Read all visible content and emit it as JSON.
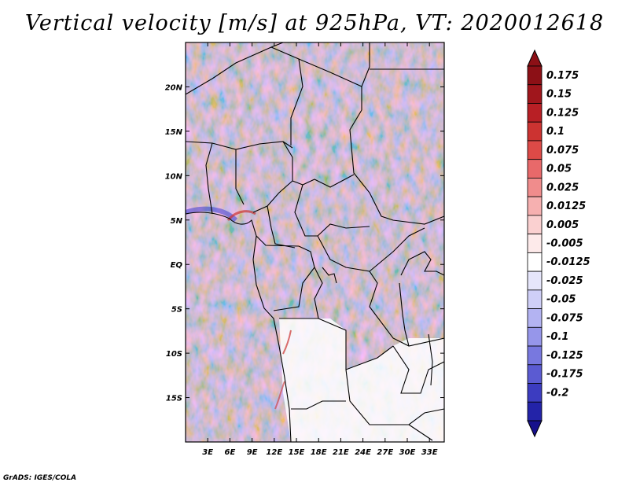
{
  "title": "Vertical velocity [m/s] at 925hPa, VT: 2020012618",
  "footer": "GrADS: IGES/COLA",
  "map": {
    "lat_ticks": [
      {
        "value": 20,
        "label": "20N"
      },
      {
        "value": 15,
        "label": "15N"
      },
      {
        "value": 10,
        "label": "10N"
      },
      {
        "value": 5,
        "label": "5N"
      },
      {
        "value": 0,
        "label": "EQ"
      },
      {
        "value": -5,
        "label": "5S"
      },
      {
        "value": -10,
        "label": "10S"
      },
      {
        "value": -15,
        "label": "15S"
      }
    ],
    "lon_ticks": [
      {
        "value": 3,
        "label": "3E"
      },
      {
        "value": 6,
        "label": "6E"
      },
      {
        "value": 9,
        "label": "9E"
      },
      {
        "value": 12,
        "label": "12E"
      },
      {
        "value": 15,
        "label": "15E"
      },
      {
        "value": 18,
        "label": "18E"
      },
      {
        "value": 21,
        "label": "21E"
      },
      {
        "value": 24,
        "label": "24E"
      },
      {
        "value": 27,
        "label": "27E"
      },
      {
        "value": 30,
        "label": "30E"
      },
      {
        "value": 33,
        "label": "33E"
      }
    ],
    "lon_range": [
      0,
      35
    ],
    "lat_range": [
      -20,
      25
    ]
  },
  "colorbar": {
    "levels": [
      {
        "label": "0.175",
        "color": "#a0161c"
      },
      {
        "label": "0.15",
        "color": "#b81f25"
      },
      {
        "label": "0.125",
        "color": "#cc3331"
      },
      {
        "label": "0.1",
        "color": "#dd4a47"
      },
      {
        "label": "0.075",
        "color": "#e8696a"
      },
      {
        "label": "0.05",
        "color": "#f08c8c"
      },
      {
        "label": "0.025",
        "color": "#f6b0b0"
      },
      {
        "label": "0.0125",
        "color": "#fad0d0"
      },
      {
        "label": "0.005",
        "color": "#fdeaea"
      },
      {
        "label": "-0.005",
        "color": "#ffffff"
      },
      {
        "label": "-0.0125",
        "color": "#e6e6fb"
      },
      {
        "label": "-0.025",
        "color": "#cfcff7"
      },
      {
        "label": "-0.05",
        "color": "#b3b3f2"
      },
      {
        "label": "-0.075",
        "color": "#9696ea"
      },
      {
        "label": "-0.1",
        "color": "#7878df"
      },
      {
        "label": "-0.125",
        "color": "#5b5bd2"
      },
      {
        "label": "-0.175",
        "color": "#3c3cc0"
      },
      {
        "label": "-0.2",
        "color": "#2323a8"
      }
    ],
    "max_color": "#8c1016",
    "min_color": "#16108c"
  }
}
